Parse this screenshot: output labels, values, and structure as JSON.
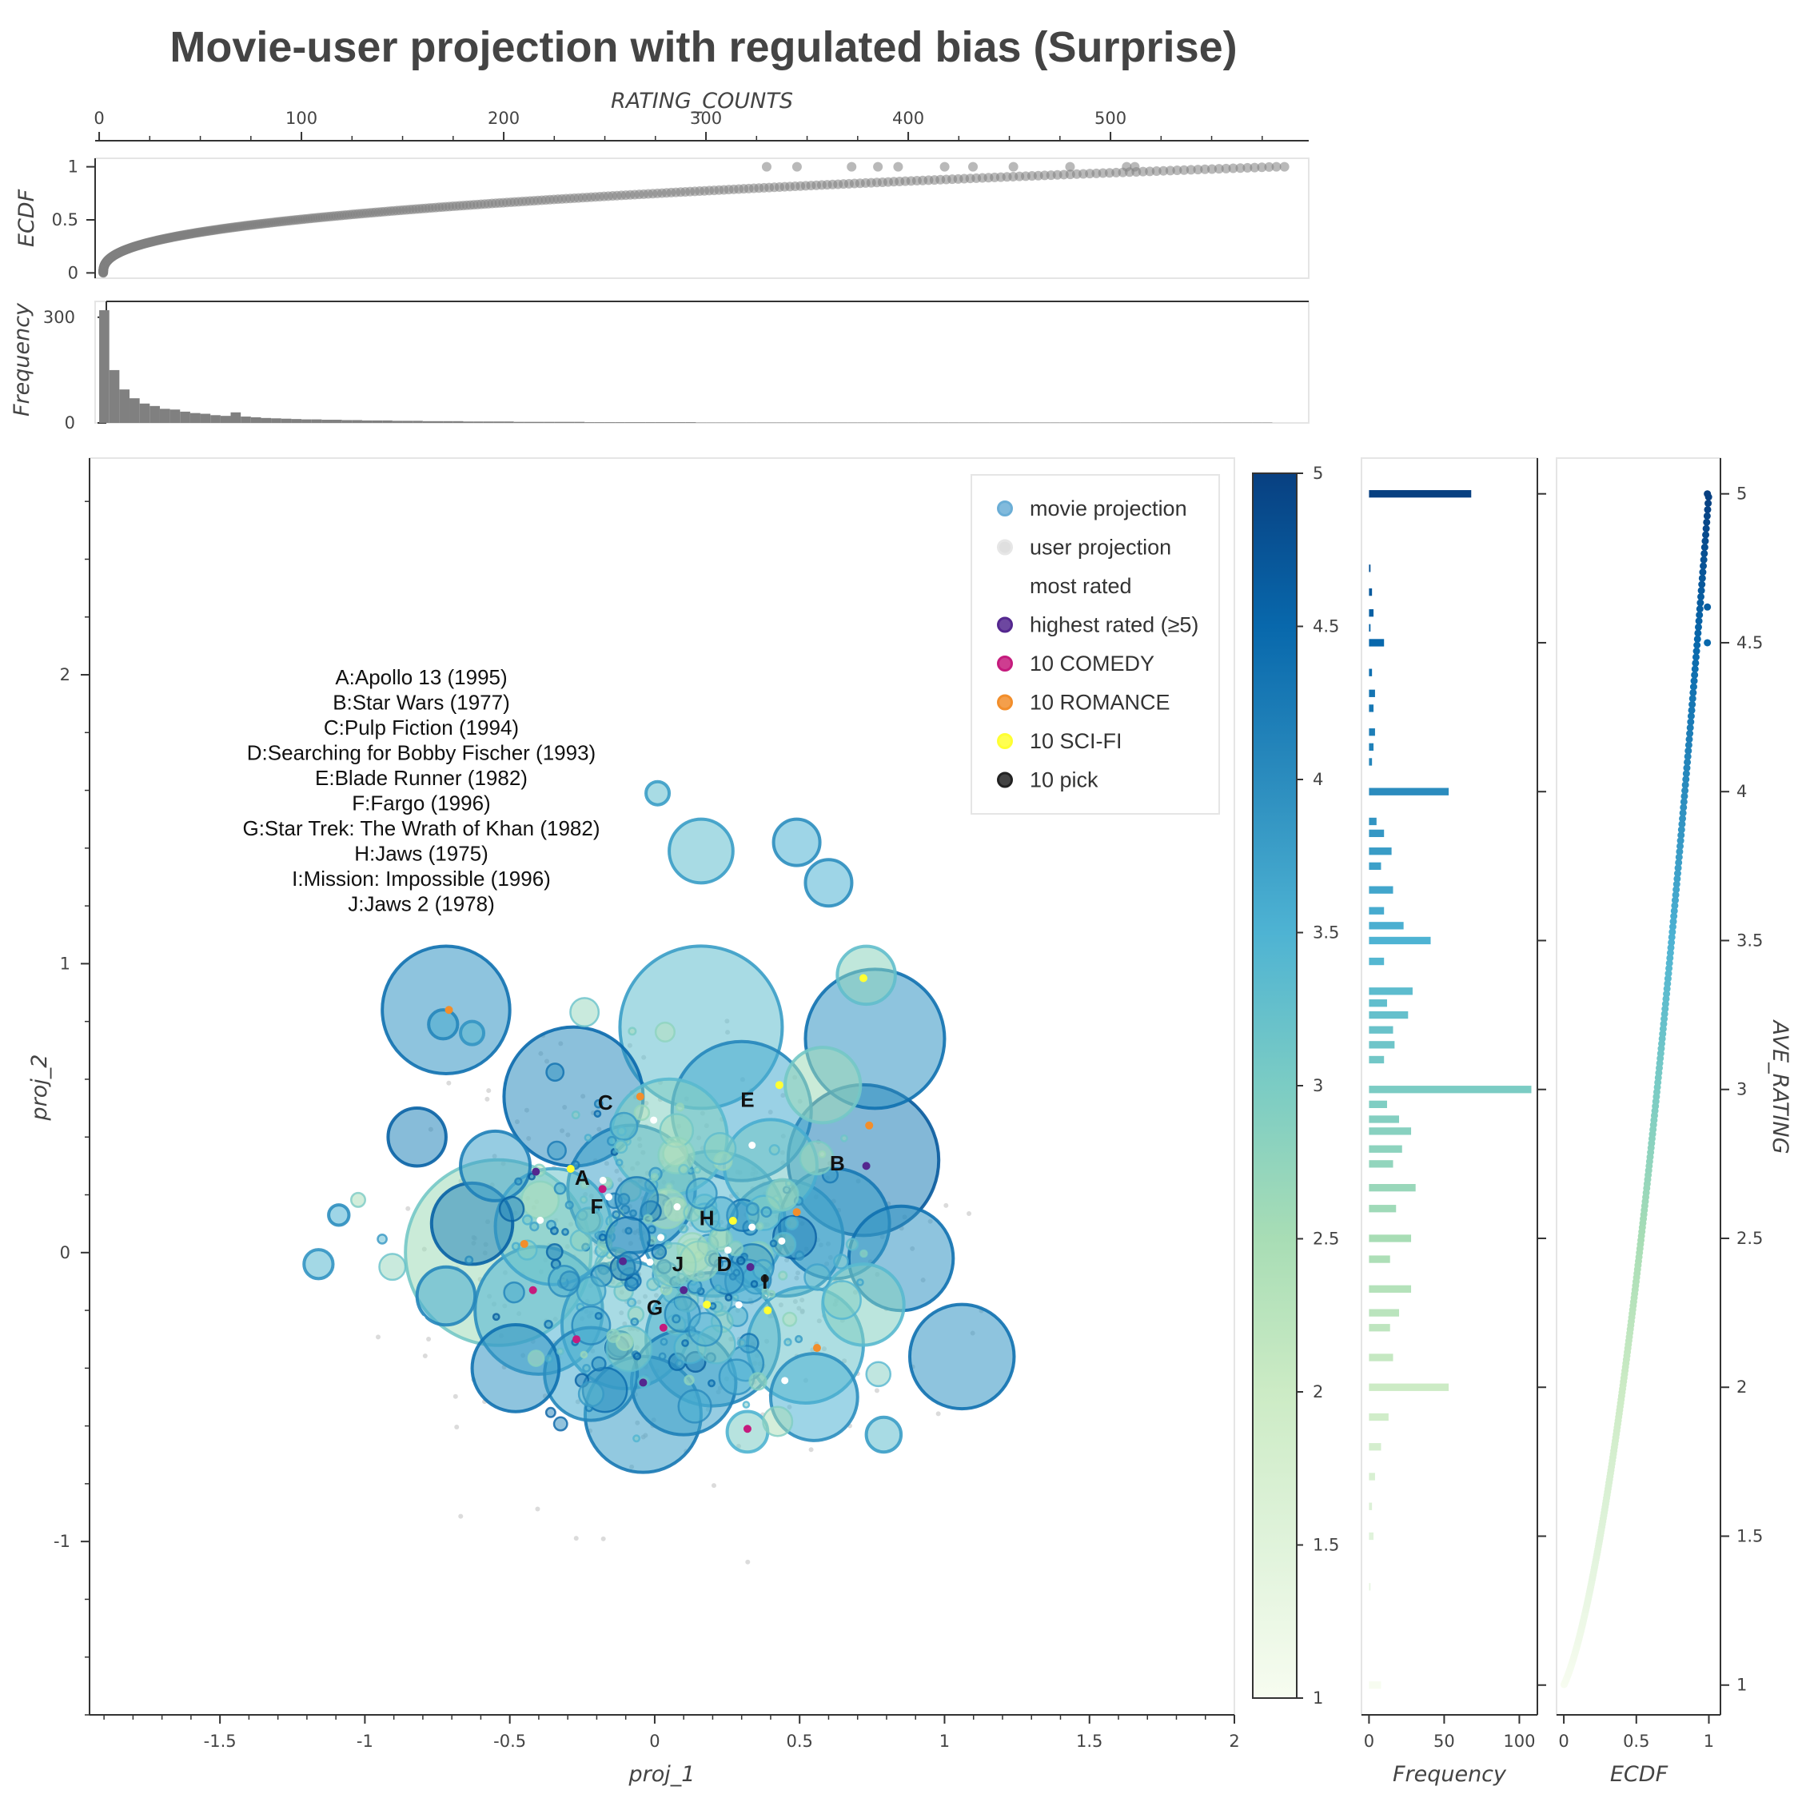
{
  "title": "Movie-user projection with regulated bias (Surprise)",
  "chart_data": [
    {
      "id": "main_scatter",
      "type": "scatter",
      "xlabel": "proj_1",
      "ylabel": "proj_2",
      "xlim": [
        -1.95,
        2.0
      ],
      "ylim": [
        -1.6,
        2.75
      ],
      "x_ticks": [
        -1.5,
        -1,
        -0.5,
        0,
        0.5,
        1,
        1.5,
        2
      ],
      "x_tick_labels": [
        "-1.5",
        "-1",
        "-0.5",
        "0",
        "0.5",
        "1",
        "1.5",
        "2"
      ],
      "y_ticks": [
        -1,
        0,
        1,
        2
      ],
      "y_tick_labels": [
        "-1",
        "0",
        "1",
        "2"
      ],
      "legend_placement": "top-right",
      "legend": [
        {
          "label": "movie projection",
          "color": "#6baed6"
        },
        {
          "label": "user projection",
          "color": "#d9d9d9"
        },
        {
          "label": "most rated",
          "color": "#ffffff"
        },
        {
          "label": "highest rated (≥5)",
          "color": "#54278f"
        },
        {
          "label": "10 COMEDY",
          "color": "#c51b7d"
        },
        {
          "label": "10 ROMANCE",
          "color": "#f28e2b"
        },
        {
          "label": "10 SCI-FI",
          "color": "#ffff33"
        },
        {
          "label": "10 pick",
          "color": "#222222"
        }
      ],
      "annotation_lines": [
        "A:Apollo 13 (1995)",
        "B:Star Wars (1977)",
        "C:Pulp Fiction (1994)",
        "D:Searching for Bobby Fischer (1993)",
        "E:Blade Runner (1982)",
        "F:Fargo (1996)",
        "G:Star Trek: The Wrath of Khan (1982)",
        "H:Jaws (1975)",
        "I:Mission: Impossible (1996)",
        "J:Jaws 2 (1978)"
      ],
      "labeled_points": [
        {
          "label": "A",
          "x": -0.25,
          "y": 0.26
        },
        {
          "label": "B",
          "x": 0.63,
          "y": 0.31
        },
        {
          "label": "C",
          "x": -0.17,
          "y": 0.52
        },
        {
          "label": "D",
          "x": 0.24,
          "y": -0.04
        },
        {
          "label": "E",
          "x": 0.32,
          "y": 0.53
        },
        {
          "label": "F",
          "x": -0.2,
          "y": 0.16
        },
        {
          "label": "G",
          "x": 0.0,
          "y": -0.19
        },
        {
          "label": "H",
          "x": 0.18,
          "y": 0.12
        },
        {
          "label": "I",
          "x": 0.38,
          "y": -0.1
        },
        {
          "label": "J",
          "x": 0.08,
          "y": -0.04
        }
      ],
      "movie_points": [
        {
          "x": -0.72,
          "y": 0.84,
          "r": 0.22,
          "rating": 3.9
        },
        {
          "x": -0.73,
          "y": 0.79,
          "r": 0.05,
          "rating": 3.6
        },
        {
          "x": -0.63,
          "y": 0.76,
          "r": 0.04,
          "rating": 3.4
        },
        {
          "x": 0.16,
          "y": 0.78,
          "r": 0.28,
          "rating": 3.3
        },
        {
          "x": 0.76,
          "y": 0.74,
          "r": 0.24,
          "rating": 3.9
        },
        {
          "x": 0.16,
          "y": 1.39,
          "r": 0.11,
          "rating": 3.3
        },
        {
          "x": 0.49,
          "y": 1.42,
          "r": 0.08,
          "rating": 3.5
        },
        {
          "x": 0.6,
          "y": 1.28,
          "r": 0.08,
          "rating": 3.5
        },
        {
          "x": 0.01,
          "y": 1.59,
          "r": 0.04,
          "rating": 3.3
        },
        {
          "x": 0.73,
          "y": 0.96,
          "r": 0.1,
          "rating": 2.8
        },
        {
          "x": -0.82,
          "y": 0.4,
          "r": 0.1,
          "rating": 4.1
        },
        {
          "x": -1.09,
          "y": 0.13,
          "r": 0.035,
          "rating": 3.5
        },
        {
          "x": -1.16,
          "y": -0.04,
          "r": 0.05,
          "rating": 3.4
        },
        {
          "x": 1.06,
          "y": -0.36,
          "r": 0.18,
          "rating": 3.9
        },
        {
          "x": 0.79,
          "y": -0.63,
          "r": 0.06,
          "rating": 3.3
        },
        {
          "x": 0.32,
          "y": -0.62,
          "r": 0.07,
          "rating": 3.0
        },
        {
          "x": -0.04,
          "y": -0.56,
          "r": 0.2,
          "rating": 3.8
        },
        {
          "x": -0.28,
          "y": 0.54,
          "r": 0.24,
          "rating": 4.0
        },
        {
          "x": 0.3,
          "y": 0.49,
          "r": 0.24,
          "rating": 3.6
        },
        {
          "x": 0.72,
          "y": 0.32,
          "r": 0.26,
          "rating": 4.2
        },
        {
          "x": -0.54,
          "y": 0.0,
          "r": 0.32,
          "rating": 2.6
        },
        {
          "x": -0.63,
          "y": 0.1,
          "r": 0.14,
          "rating": 4.1
        },
        {
          "x": -0.35,
          "y": 0.09,
          "r": 0.2,
          "rating": 3.2
        },
        {
          "x": -0.08,
          "y": 0.22,
          "r": 0.22,
          "rating": 3.7
        },
        {
          "x": 0.2,
          "y": 0.1,
          "r": 0.25,
          "rating": 3.4
        },
        {
          "x": 0.45,
          "y": 0.05,
          "r": 0.2,
          "rating": 3.6
        },
        {
          "x": 0.62,
          "y": 0.1,
          "r": 0.19,
          "rating": 3.8
        },
        {
          "x": 0.85,
          "y": -0.02,
          "r": 0.18,
          "rating": 3.9
        },
        {
          "x": -0.4,
          "y": -0.2,
          "r": 0.22,
          "rating": 3.5
        },
        {
          "x": -0.1,
          "y": -0.25,
          "r": 0.22,
          "rating": 3.3
        },
        {
          "x": 0.2,
          "y": -0.3,
          "r": 0.23,
          "rating": 3.6
        },
        {
          "x": 0.52,
          "y": -0.32,
          "r": 0.2,
          "rating": 3.2
        },
        {
          "x": -0.48,
          "y": -0.4,
          "r": 0.15,
          "rating": 3.9
        },
        {
          "x": -0.22,
          "y": -0.42,
          "r": 0.16,
          "rating": 3.6
        },
        {
          "x": 0.55,
          "y": -0.5,
          "r": 0.15,
          "rating": 3.5
        },
        {
          "x": 0.72,
          "y": -0.18,
          "r": 0.14,
          "rating": 2.9
        },
        {
          "x": -0.72,
          "y": -0.15,
          "r": 0.1,
          "rating": 3.6
        },
        {
          "x": 0.05,
          "y": 0.4,
          "r": 0.2,
          "rating": 2.9
        },
        {
          "x": 0.4,
          "y": 0.3,
          "r": 0.16,
          "rating": 3.1
        },
        {
          "x": -0.55,
          "y": 0.3,
          "r": 0.12,
          "rating": 3.7
        },
        {
          "x": 0.1,
          "y": -0.45,
          "r": 0.18,
          "rating": 3.7
        },
        {
          "x": 0.58,
          "y": 0.58,
          "r": 0.13,
          "rating": 2.6
        }
      ],
      "user_points_note": "",
      "highlight_points": [
        {
          "group": "highest rated (≥5)",
          "x": -0.41,
          "y": 0.28
        },
        {
          "group": "highest rated (≥5)",
          "x": 0.73,
          "y": 0.3
        },
        {
          "group": "highest rated (≥5)",
          "x": 0.33,
          "y": -0.05
        },
        {
          "group": "highest rated (≥5)",
          "x": -0.11,
          "y": -0.03
        },
        {
          "group": "highest rated (≥5)",
          "x": 0.1,
          "y": -0.13
        },
        {
          "group": "highest rated (≥5)",
          "x": -0.04,
          "y": -0.45
        },
        {
          "group": "10 COMEDY",
          "x": -0.18,
          "y": 0.22
        },
        {
          "group": "10 COMEDY",
          "x": -0.42,
          "y": -0.13
        },
        {
          "group": "10 COMEDY",
          "x": 0.32,
          "y": -0.61
        },
        {
          "group": "10 COMEDY",
          "x": 0.03,
          "y": -0.26
        },
        {
          "group": "10 COMEDY",
          "x": -0.27,
          "y": -0.3
        },
        {
          "group": "10 ROMANCE",
          "x": -0.71,
          "y": 0.84
        },
        {
          "group": "10 ROMANCE",
          "x": -0.05,
          "y": 0.54
        },
        {
          "group": "10 ROMANCE",
          "x": 0.74,
          "y": 0.44
        },
        {
          "group": "10 ROMANCE",
          "x": -0.45,
          "y": 0.03
        },
        {
          "group": "10 ROMANCE",
          "x": 0.49,
          "y": 0.14
        },
        {
          "group": "10 ROMANCE",
          "x": 0.56,
          "y": -0.33
        },
        {
          "group": "10 SCI-FI",
          "x": 0.72,
          "y": 0.95
        },
        {
          "group": "10 SCI-FI",
          "x": 0.43,
          "y": 0.58
        },
        {
          "group": "10 SCI-FI",
          "x": 0.27,
          "y": 0.11
        },
        {
          "group": "10 SCI-FI",
          "x": 0.39,
          "y": -0.2
        },
        {
          "group": "10 SCI-FI",
          "x": 0.18,
          "y": -0.18
        },
        {
          "group": "10 SCI-FI",
          "x": -0.29,
          "y": 0.29
        },
        {
          "group": "10 pick",
          "x": 0.38,
          "y": -0.09
        }
      ]
    },
    {
      "id": "rating_counts_ecdf",
      "type": "scatter",
      "xlabel": "RATING_COUNTS",
      "ylabel": "ECDF",
      "xlim": [
        -2,
        598
      ],
      "ylim": [
        -0.05,
        1.08
      ],
      "x_ticks": [
        0,
        100,
        200,
        300,
        400,
        500
      ],
      "x_tick_labels": [
        "0",
        "100",
        "200",
        "300",
        "400",
        "500"
      ],
      "y_ticks": [
        0,
        0.5,
        1
      ],
      "y_tick_labels": [
        "0",
        "0.5",
        "1"
      ],
      "color": "#808080"
    },
    {
      "id": "rating_counts_hist",
      "type": "bar",
      "ylabel": "Frequency",
      "xlim": [
        -2,
        598
      ],
      "ylim": [
        0,
        345
      ],
      "y_ticks": [
        0,
        300
      ],
      "y_tick_labels": [
        "0",
        "300"
      ],
      "bin_width": 5,
      "values": [
        320,
        150,
        95,
        70,
        55,
        48,
        40,
        38,
        32,
        28,
        26,
        22,
        20,
        30,
        18,
        16,
        14,
        13,
        12,
        11,
        10,
        10,
        9,
        9,
        8,
        8,
        7,
        7,
        7,
        6,
        6,
        6,
        5,
        5,
        5,
        5,
        4,
        4,
        4,
        4,
        4,
        3,
        3,
        3,
        3,
        3,
        3,
        3,
        2,
        2,
        2,
        2,
        2,
        2,
        2,
        2,
        2,
        2,
        2,
        1,
        1,
        1,
        1,
        1,
        1,
        1,
        1,
        1,
        1,
        1,
        1,
        1,
        1,
        1,
        1,
        1,
        1,
        1,
        1,
        1,
        1,
        1,
        1,
        1,
        1,
        1,
        1,
        1,
        1,
        1,
        1,
        1,
        1,
        1,
        1,
        1,
        1,
        1,
        1,
        1,
        1,
        1,
        1,
        1,
        1,
        1,
        1,
        1,
        1,
        1,
        1,
        1,
        1,
        1,
        1,
        1
      ],
      "color": "#808080"
    },
    {
      "id": "colorbar",
      "type": "heatmap",
      "range": [
        1,
        5
      ],
      "ticks": [
        1,
        1.5,
        2,
        2.5,
        3,
        3.5,
        4,
        4.5,
        5
      ],
      "tick_labels": [
        "1",
        "1.5",
        "2",
        "2.5",
        "3",
        "3.5",
        "4",
        "4.5",
        "5"
      ],
      "palette": [
        "#f7fcf0",
        "#e0f3db",
        "#ccebc5",
        "#a8ddb5",
        "#7bccc4",
        "#4eb3d3",
        "#2b8cbe",
        "#0868ac",
        "#084081"
      ]
    },
    {
      "id": "ave_rating_hist",
      "type": "bar",
      "orientation": "horizontal",
      "xlabel": "Frequency",
      "xlim": [
        -5,
        112
      ],
      "x_ticks": [
        0,
        50,
        100
      ],
      "x_tick_labels": [
        "0",
        "50",
        "100"
      ],
      "ylim": [
        0.9,
        5.12
      ],
      "bin_width": 0.025,
      "bins": [
        {
          "y": 5.0,
          "count": 68
        },
        {
          "y": 4.75,
          "count": 1
        },
        {
          "y": 4.67,
          "count": 2
        },
        {
          "y": 4.6,
          "count": 3
        },
        {
          "y": 4.55,
          "count": 1
        },
        {
          "y": 4.5,
          "count": 10
        },
        {
          "y": 4.4,
          "count": 2
        },
        {
          "y": 4.33,
          "count": 4
        },
        {
          "y": 4.28,
          "count": 3
        },
        {
          "y": 4.2,
          "count": 4
        },
        {
          "y": 4.15,
          "count": 3
        },
        {
          "y": 4.1,
          "count": 2
        },
        {
          "y": 4.0,
          "count": 53
        },
        {
          "y": 3.9,
          "count": 5
        },
        {
          "y": 3.86,
          "count": 10
        },
        {
          "y": 3.8,
          "count": 15
        },
        {
          "y": 3.75,
          "count": 8
        },
        {
          "y": 3.67,
          "count": 16
        },
        {
          "y": 3.6,
          "count": 10
        },
        {
          "y": 3.55,
          "count": 23
        },
        {
          "y": 3.5,
          "count": 41
        },
        {
          "y": 3.43,
          "count": 10
        },
        {
          "y": 3.33,
          "count": 29
        },
        {
          "y": 3.29,
          "count": 12
        },
        {
          "y": 3.25,
          "count": 26
        },
        {
          "y": 3.2,
          "count": 16
        },
        {
          "y": 3.15,
          "count": 17
        },
        {
          "y": 3.1,
          "count": 10
        },
        {
          "y": 3.0,
          "count": 108
        },
        {
          "y": 2.95,
          "count": 12
        },
        {
          "y": 2.9,
          "count": 20
        },
        {
          "y": 2.86,
          "count": 28
        },
        {
          "y": 2.8,
          "count": 22
        },
        {
          "y": 2.75,
          "count": 16
        },
        {
          "y": 2.67,
          "count": 31
        },
        {
          "y": 2.6,
          "count": 18
        },
        {
          "y": 2.5,
          "count": 28
        },
        {
          "y": 2.43,
          "count": 14
        },
        {
          "y": 2.33,
          "count": 28
        },
        {
          "y": 2.25,
          "count": 20
        },
        {
          "y": 2.2,
          "count": 14
        },
        {
          "y": 2.1,
          "count": 16
        },
        {
          "y": 2.0,
          "count": 53
        },
        {
          "y": 1.9,
          "count": 13
        },
        {
          "y": 1.8,
          "count": 8
        },
        {
          "y": 1.7,
          "count": 4
        },
        {
          "y": 1.6,
          "count": 2
        },
        {
          "y": 1.5,
          "count": 3
        },
        {
          "y": 1.33,
          "count": 1
        },
        {
          "y": 1.0,
          "count": 8
        }
      ]
    },
    {
      "id": "ave_rating_ecdf",
      "type": "scatter",
      "xlabel": "ECDF",
      "ylabel": "AVE_RATING",
      "xlim": [
        -0.05,
        1.08
      ],
      "x_ticks": [
        0,
        0.5,
        1
      ],
      "x_tick_labels": [
        "0",
        "0.5",
        "1"
      ],
      "ylim": [
        0.9,
        5.12
      ],
      "y_ticks": [
        1,
        1.5,
        2,
        2.5,
        3,
        3.5,
        4,
        4.5,
        5
      ],
      "y_tick_labels": [
        "1",
        "1.5",
        "2",
        "2.5",
        "3",
        "3.5",
        "4",
        "4.5",
        "5"
      ]
    }
  ]
}
